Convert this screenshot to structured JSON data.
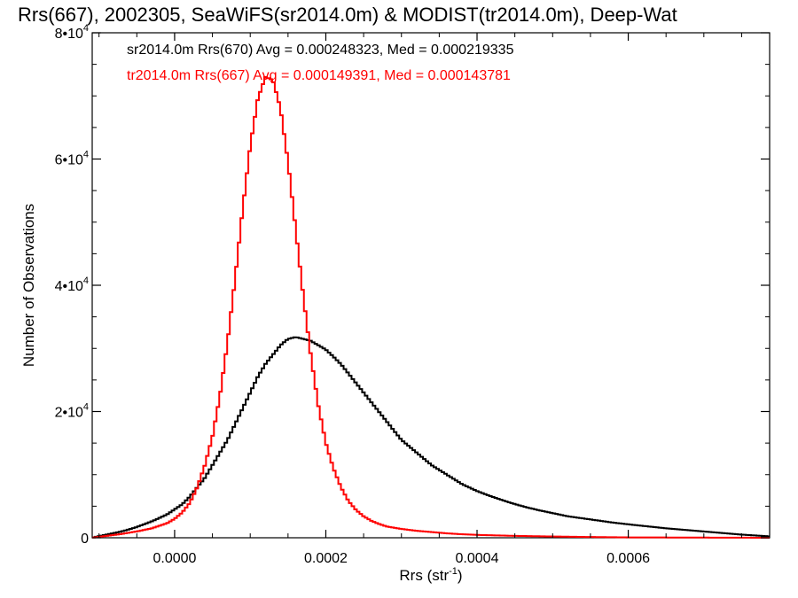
{
  "chart_data": {
    "type": "line",
    "title": "Rrs(667), 2002305, SeaWiFS(sr2014.0m) & MODIST(tr2014.0m), Deep-Wat",
    "xlabel": "Rrs (str",
    "xlabel_exponent": "-1",
    "xlabel_close": ")",
    "ylabel": "Number of Observations",
    "xlim": [
      -0.000109,
      0.000787
    ],
    "ylim": [
      0,
      80000
    ],
    "x_ticks": [
      {
        "value": 0.0,
        "label": "0.0000"
      },
      {
        "value": 0.0002,
        "label": "0.0002"
      },
      {
        "value": 0.0004,
        "label": "0.0004"
      },
      {
        "value": 0.0006,
        "label": "0.0006"
      }
    ],
    "y_ticks": [
      {
        "value": 0,
        "label": "0",
        "exponent": ""
      },
      {
        "value": 20000,
        "label": "2•10",
        "exponent": "4"
      },
      {
        "value": 40000,
        "label": "4•10",
        "exponent": "4"
      },
      {
        "value": 60000,
        "label": "6•10",
        "exponent": "4"
      },
      {
        "value": 80000,
        "label": "8•10",
        "exponent": "4"
      }
    ],
    "grid": false,
    "step": true,
    "series": [
      {
        "name": "sr2014.0m Rrs(670) Avg = 0.000248323, Med = 0.000219335",
        "color": "#000000",
        "x": [
          -0.00011,
          -9e-05,
          -7e-05,
          -5e-05,
          -3e-05,
          -1e-05,
          0.0,
          1e-05,
          2e-05,
          3e-05,
          4e-05,
          5e-05,
          6e-05,
          7e-05,
          8e-05,
          9e-05,
          0.0001,
          0.00011,
          0.00012,
          0.00013,
          0.00014,
          0.00015,
          0.00016,
          0.00017,
          0.00018,
          0.00019,
          0.0002,
          0.00021,
          0.00022,
          0.00023,
          0.00024,
          0.00025,
          0.00026,
          0.00027,
          0.00028,
          0.00029,
          0.0003,
          0.00032,
          0.00034,
          0.00036,
          0.00038,
          0.0004,
          0.00042,
          0.00044,
          0.00046,
          0.00048,
          0.0005,
          0.00052,
          0.00055,
          0.00058,
          0.00061,
          0.00065,
          0.0007,
          0.00075,
          0.00079
        ],
        "y": [
          0,
          500,
          1000,
          1700,
          2600,
          3700,
          4500,
          5300,
          6500,
          8000,
          9500,
          11500,
          13500,
          15500,
          18000,
          20500,
          23000,
          25500,
          27500,
          29000,
          30500,
          31500,
          31800,
          31500,
          31200,
          30500,
          29800,
          28700,
          27500,
          26000,
          24500,
          23000,
          21500,
          20000,
          18500,
          17000,
          15500,
          13500,
          11500,
          10000,
          8500,
          7400,
          6500,
          5700,
          5000,
          4400,
          3900,
          3400,
          2900,
          2400,
          2000,
          1500,
          1000,
          500,
          200
        ]
      },
      {
        "name": "tr2014.0m Rrs(667) Avg = 0.000149391, Med = 0.000143781",
        "color": "#ff0000",
        "x": [
          -0.00011,
          -9e-05,
          -7e-05,
          -5e-05,
          -3e-05,
          -1e-05,
          0.0,
          1e-05,
          2e-05,
          3e-05,
          4e-05,
          5e-05,
          6e-05,
          7e-05,
          8e-05,
          9e-05,
          0.0001,
          0.00011,
          0.00012,
          0.00013,
          0.00014,
          0.00015,
          0.00016,
          0.00017,
          0.00018,
          0.00019,
          0.0002,
          0.00021,
          0.00022,
          0.00023,
          0.00024,
          0.00025,
          0.00026,
          0.00027,
          0.00028,
          0.0003,
          0.00032,
          0.00034,
          0.00036,
          0.00038,
          0.0004,
          0.00045,
          0.0005,
          0.00055,
          0.0006,
          0.00079
        ],
        "y": [
          0,
          300,
          600,
          1000,
          1500,
          2300,
          3000,
          4000,
          5500,
          8000,
          11500,
          16000,
          22500,
          31000,
          41000,
          52000,
          62000,
          69500,
          73000,
          72500,
          68000,
          59500,
          49000,
          38500,
          29000,
          21000,
          15000,
          11000,
          8000,
          5800,
          4400,
          3400,
          2700,
          2200,
          1800,
          1400,
          1100,
          900,
          700,
          550,
          450,
          300,
          200,
          120,
          60,
          0
        ]
      }
    ]
  }
}
